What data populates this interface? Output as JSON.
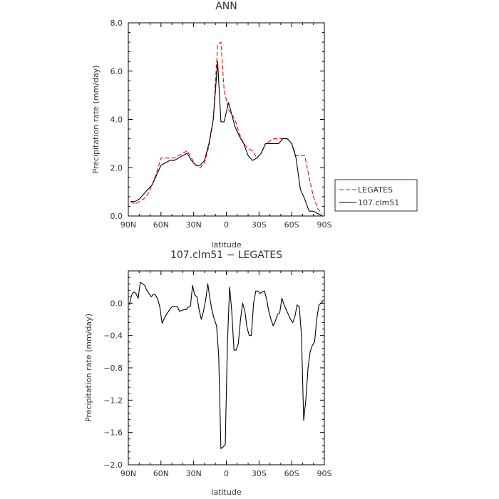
{
  "chart_data": [
    {
      "type": "line",
      "title": "ANN",
      "xlabel": "latitude",
      "ylabel": "Precipitation rate (mm/day)",
      "xticks": [
        "90N",
        "60N",
        "30N",
        "0",
        "30S",
        "60S",
        "90S"
      ],
      "xlim": [
        -90,
        90
      ],
      "ylim": [
        0,
        8
      ],
      "yticks": [
        0.0,
        2.0,
        4.0,
        6.0,
        8.0
      ],
      "ytick_labels": [
        "0.0",
        "2.0",
        "4.0",
        "6.0",
        "8.0"
      ],
      "grid": false,
      "legend_position": "right",
      "series": [
        {
          "name": "LEGATES",
          "color": "#ff0000",
          "dash": "dashed",
          "x": [
            -88,
            -84,
            -80,
            -76,
            -72,
            -68,
            -64,
            -60,
            -56,
            -52,
            -48,
            -44,
            -40,
            -36,
            -32,
            -28,
            -24,
            -20,
            -16,
            -12,
            -8,
            -5,
            -2,
            2,
            5,
            8,
            12,
            16,
            20,
            24,
            28,
            32,
            36,
            40,
            44,
            48,
            52,
            56,
            60,
            64,
            68,
            72,
            76,
            80,
            84,
            88
          ],
          "y": [
            0.6,
            0.5,
            0.6,
            0.7,
            0.9,
            1.3,
            1.8,
            2.4,
            2.4,
            2.4,
            2.4,
            2.5,
            2.6,
            2.7,
            2.4,
            2.1,
            2.0,
            2.2,
            2.9,
            4.0,
            7.1,
            7.2,
            5.2,
            4.4,
            4.2,
            4.0,
            3.4,
            3.0,
            2.8,
            2.7,
            2.4,
            2.6,
            3.0,
            3.1,
            3.2,
            3.2,
            3.2,
            3.2,
            3.0,
            2.5,
            2.5,
            2.5,
            1.6,
            0.8,
            0.3,
            0.1
          ]
        },
        {
          "name": "107.clm51",
          "color": "#000000",
          "dash": "solid",
          "x": [
            -88,
            -84,
            -80,
            -76,
            -72,
            -68,
            -64,
            -60,
            -56,
            -52,
            -48,
            -44,
            -40,
            -36,
            -32,
            -28,
            -24,
            -20,
            -16,
            -12,
            -8,
            -5,
            -2,
            2,
            5,
            8,
            12,
            16,
            20,
            24,
            28,
            32,
            36,
            40,
            44,
            48,
            52,
            56,
            60,
            64,
            68,
            72,
            76,
            80,
            84,
            88
          ],
          "y": [
            0.6,
            0.6,
            0.7,
            0.9,
            1.1,
            1.3,
            1.7,
            2.1,
            2.2,
            2.3,
            2.3,
            2.4,
            2.5,
            2.6,
            2.3,
            2.1,
            2.1,
            2.3,
            3.0,
            4.0,
            6.4,
            3.9,
            3.9,
            4.7,
            4.2,
            3.7,
            3.3,
            3.0,
            2.5,
            2.3,
            2.4,
            2.6,
            3.0,
            3.0,
            3.0,
            3.0,
            3.2,
            3.2,
            3.0,
            2.4,
            1.1,
            0.7,
            0.2,
            0.2,
            0.1,
            0.0
          ]
        }
      ]
    },
    {
      "type": "line",
      "title": "107.clm51 − LEGATES",
      "xlabel": "latitude",
      "ylabel": "Precipitation rate (mm/day)",
      "xticks": [
        "90N",
        "60N",
        "30N",
        "0",
        "30S",
        "60S",
        "90S"
      ],
      "xlim": [
        -90,
        90
      ],
      "ylim": [
        -2.0,
        0.4
      ],
      "yticks": [
        -2.0,
        -1.6,
        -1.2,
        -0.8,
        -0.4,
        0.0
      ],
      "ytick_labels": [
        "−2.0",
        "−1.6",
        "−1.2",
        "−0.8",
        "−0.4",
        "0.0"
      ],
      "grid": false,
      "series": [
        {
          "color": "#000000",
          "dash": "solid",
          "x": [
            -89,
            -87,
            -85,
            -83,
            -81,
            -79,
            -77,
            -75,
            -73,
            -71,
            -69,
            -67,
            -65,
            -63,
            -61,
            -59,
            -57,
            -55,
            -53,
            -51,
            -49,
            -47,
            -45,
            -43,
            -41,
            -39,
            -37,
            -35,
            -33,
            -31,
            -29,
            -27,
            -25,
            -23,
            -21,
            -19,
            -17,
            -15,
            -13,
            -11,
            -9,
            -7,
            -5,
            -3,
            -1,
            1,
            3,
            5,
            7,
            9,
            11,
            13,
            15,
            17,
            19,
            21,
            23,
            25,
            27,
            29,
            31,
            33,
            35,
            37,
            39,
            41,
            43,
            45,
            47,
            49,
            51,
            53,
            55,
            57,
            59,
            61,
            63,
            65,
            67,
            69,
            71,
            73,
            75,
            77,
            79,
            81,
            83,
            85,
            87,
            89
          ],
          "y": [
            -0.02,
            0.1,
            0.14,
            0.12,
            0.06,
            0.26,
            0.24,
            0.22,
            0.16,
            0.12,
            0.08,
            0.11,
            0.1,
            0.05,
            -0.05,
            -0.25,
            -0.19,
            -0.14,
            -0.1,
            -0.06,
            -0.04,
            -0.04,
            -0.04,
            -0.1,
            -0.09,
            -0.08,
            -0.08,
            -0.05,
            -0.04,
            0.22,
            0.1,
            0.08,
            -0.08,
            -0.2,
            -0.1,
            0.04,
            0.24,
            0.05,
            -0.1,
            -0.2,
            -0.28,
            -0.65,
            -1.8,
            -1.78,
            -1.75,
            -0.5,
            0.2,
            -0.1,
            -0.58,
            -0.58,
            -0.5,
            -0.2,
            0.0,
            -0.1,
            -0.3,
            -0.4,
            -0.4,
            0.0,
            0.15,
            0.15,
            0.12,
            0.14,
            0.15,
            0.05,
            -0.1,
            -0.2,
            -0.28,
            -0.22,
            -0.14,
            -0.12,
            0.06,
            -0.02,
            -0.08,
            -0.14,
            -0.2,
            -0.24,
            -0.16,
            -0.02,
            -0.05,
            -0.4,
            -1.45,
            -1.2,
            -0.8,
            -0.6,
            -0.52,
            -0.48,
            -0.2,
            -0.02,
            0.0,
            0.04
          ]
        }
      ]
    }
  ]
}
